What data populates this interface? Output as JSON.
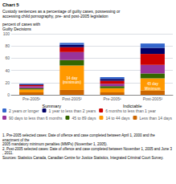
{
  "chart_data": {
    "type": "bar",
    "title": "Chart 5",
    "subtitle": "Custody sentences as a percentage of guilty cases, possessing or\naccessing child pornography, pre- and post-2005 legislation",
    "ylabel": "percent of cases with\nGuilty Decisions",
    "categories": [
      "Pre-2005¹",
      "Post-2005²",
      "Pre-2005¹",
      "Post-2005²"
    ],
    "groups": [
      "Summary",
      "Indictable"
    ],
    "series": [
      {
        "name": "Less than 14 days",
        "color": "#cc6600",
        "values": [
          4,
          8,
          4,
          7
        ]
      },
      {
        "name": "14 to 44 days",
        "color": "#ff9900",
        "values": [
          5,
          40,
          7,
          20
        ]
      },
      {
        "name": "45 to 89 days",
        "color": "#336600",
        "values": [
          2,
          9,
          3,
          8
        ]
      },
      {
        "name": "90 days to less than 6 months",
        "color": "#993399",
        "values": [
          3,
          13,
          4,
          14
        ]
      },
      {
        "name": "6 months to less than 1 year",
        "color": "#cc0000",
        "values": [
          2,
          8,
          5,
          18
        ]
      },
      {
        "name": "1 year to less than 2 years",
        "color": "#000066",
        "values": [
          1,
          4,
          3,
          10
        ]
      },
      {
        "name": "2 years or longer",
        "color": "#3366cc",
        "values": [
          1,
          3,
          3,
          7
        ]
      }
    ],
    "stacked": true,
    "ylim": [
      0,
      100
    ],
    "yticks": [
      0,
      20,
      40,
      60,
      80,
      100
    ],
    "grid": true,
    "legend": "bottom",
    "annotations": [
      {
        "text": "14 day\n(minimum)",
        "x": 1,
        "y": 24,
        "color": "white"
      },
      {
        "text": "45 day\nMinimum",
        "x": 3,
        "y": 14,
        "color": "white"
      }
    ],
    "notes": [
      "1. Pre-2005 selected cases: Date of offence and case completed between April 1, 2000 and the enactment of the",
      "2005 mandatory minimum penalties (MMPs) (November 1, 2005).",
      "2. Post-2005 selected cases: Date of offence and case completed between November 1, 2005 and June 3, 2011."
    ],
    "source": "Sources: Statistics Canada, Canadian Centre for Justice Statistics, Integrated Criminal Court Survey."
  }
}
